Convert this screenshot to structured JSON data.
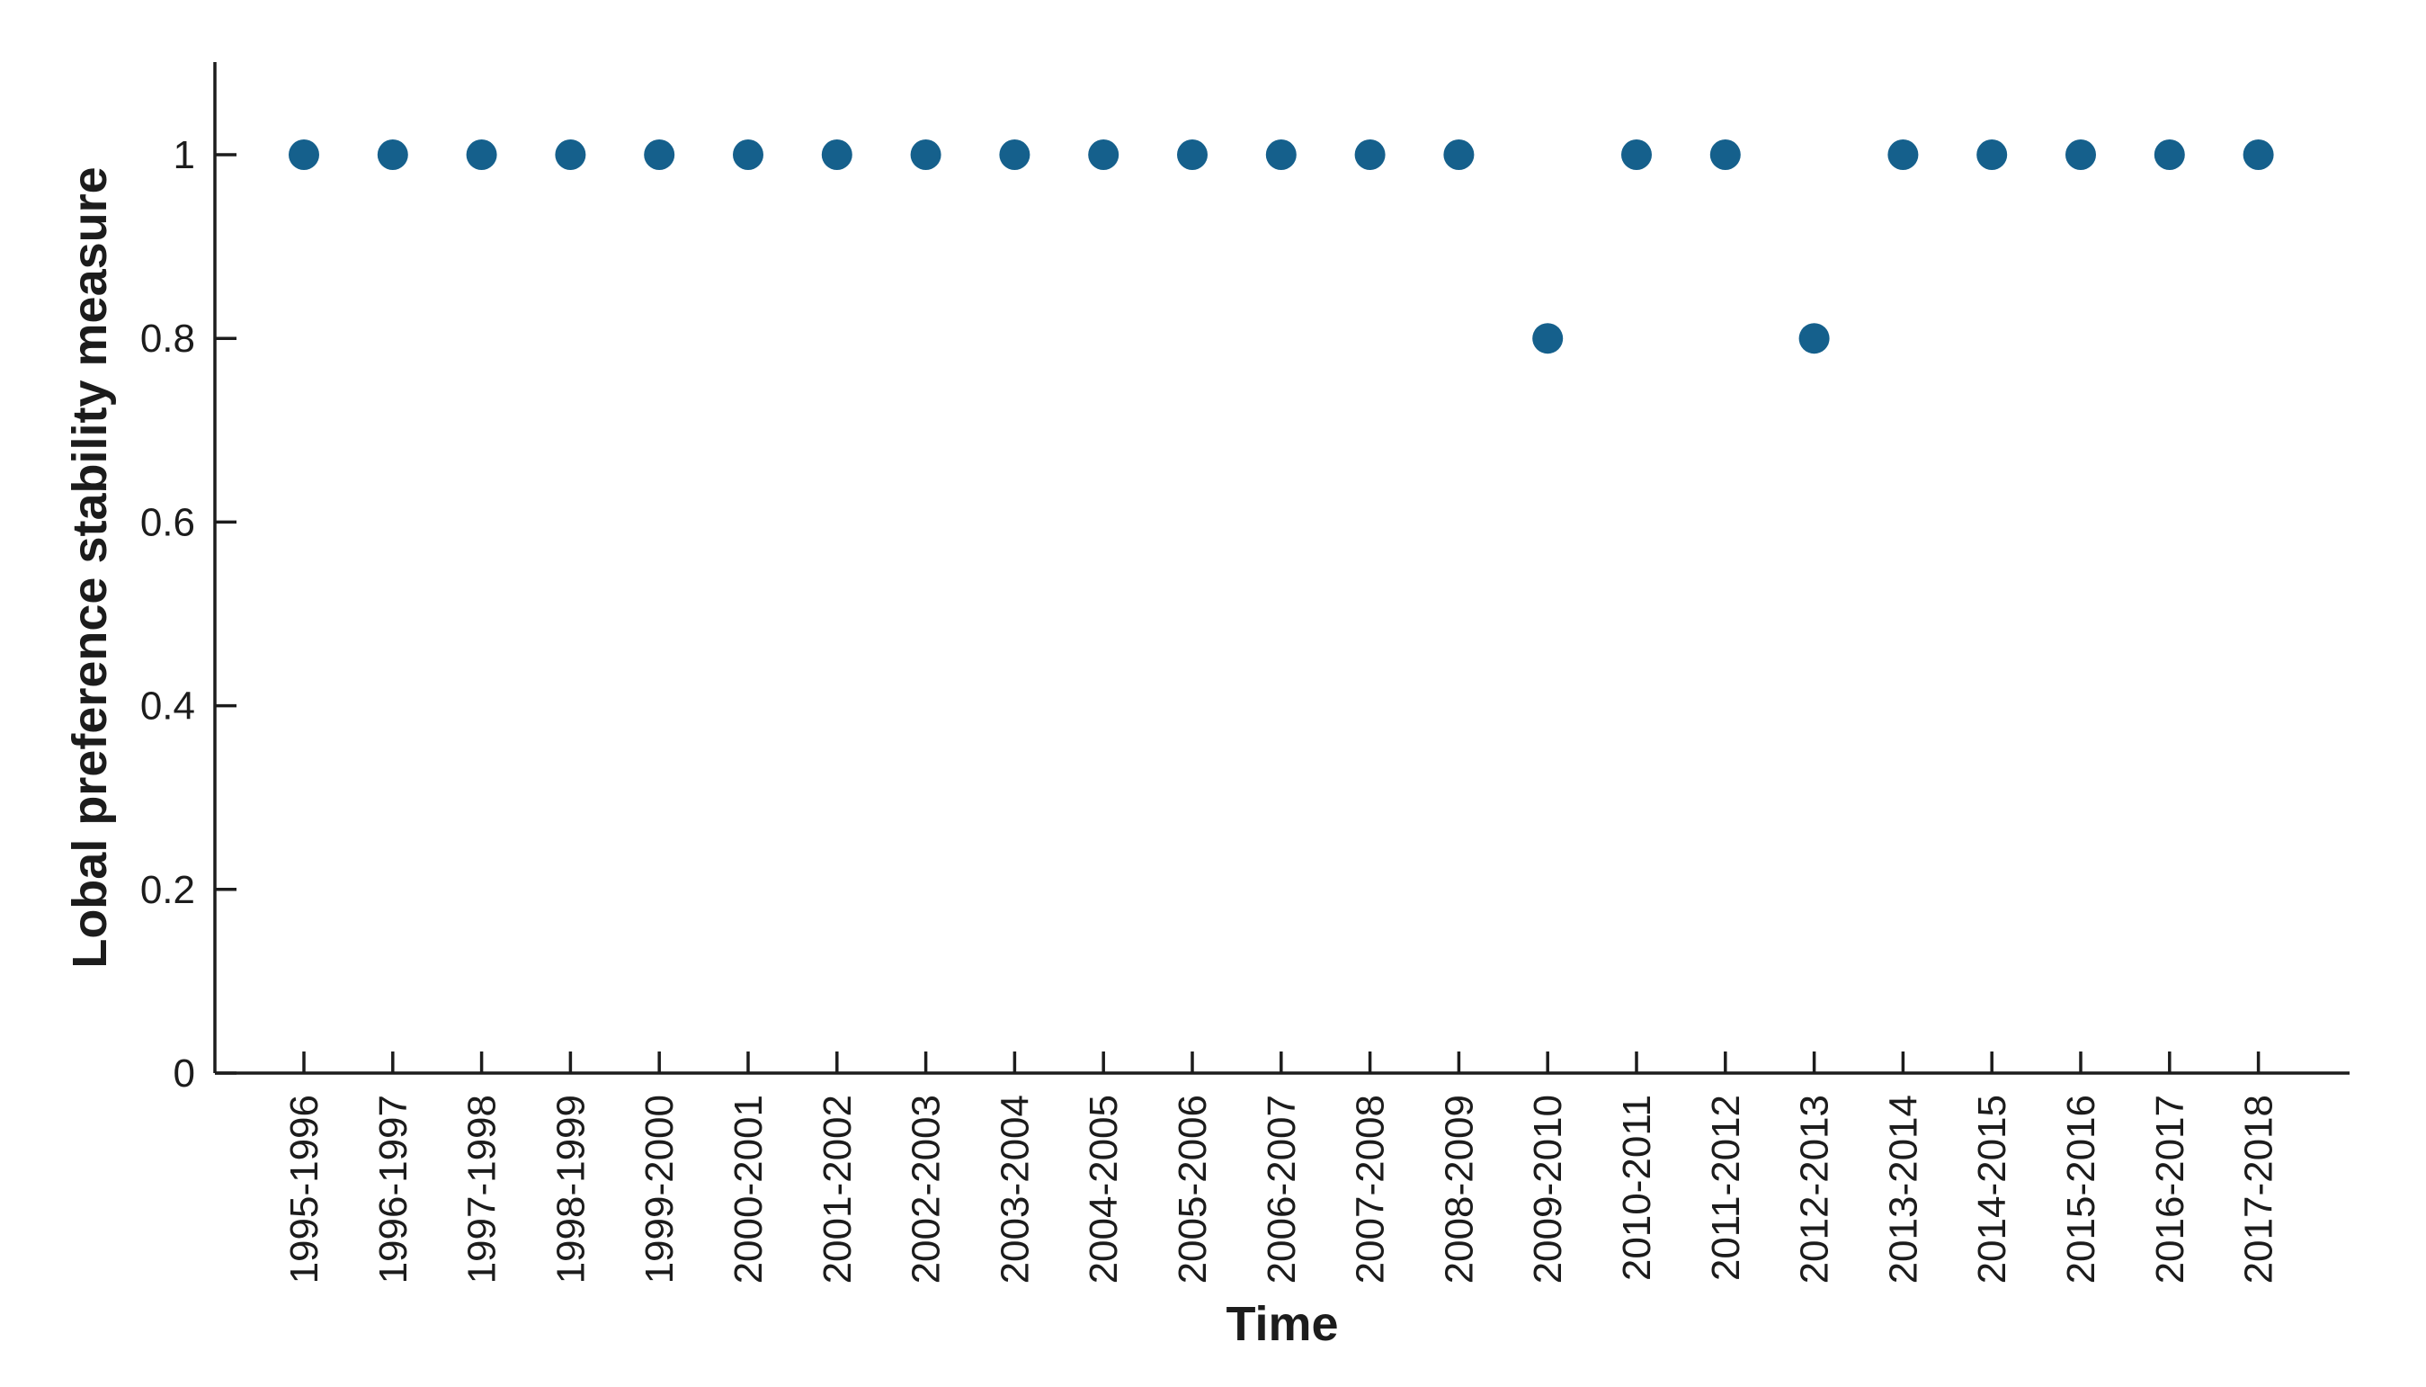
{
  "figure": {
    "background": "#ffffff"
  },
  "chart_data": {
    "type": "scatter",
    "title": "",
    "xlabel": "Time",
    "ylabel": "Lobal preference stability measure",
    "categories": [
      "1995-1996",
      "1996-1997",
      "1997-1998",
      "1998-1999",
      "1999-2000",
      "2000-2001",
      "2001-2002",
      "2002-2003",
      "2003-2004",
      "2004-2005",
      "2005-2006",
      "2006-2007",
      "2007-2008",
      "2008-2009",
      "2009-2010",
      "2010-2011",
      "2011-2012",
      "2012-2013",
      "2013-2014",
      "2014-2015",
      "2015-2016",
      "2016-2017",
      "2017-2018"
    ],
    "values": [
      1,
      1,
      1,
      1,
      1,
      1,
      1,
      1,
      1,
      1,
      1,
      1,
      1,
      1,
      0.8,
      1,
      1,
      0.8,
      1,
      1,
      1,
      1,
      1
    ],
    "ylim": [
      0,
      1.1
    ],
    "yticks": [
      0,
      0.2,
      0.4,
      0.6,
      0.8,
      1
    ],
    "ytick_labels": [
      "0",
      "0.2",
      "0.4",
      "0.6",
      "0.8",
      "1"
    ],
    "grid": false,
    "legend_position": "none",
    "marker_shape": "circle",
    "marker_color": "#15608c",
    "axis_color": "#1c1c1c",
    "text_color": "#1c1c1c"
  }
}
